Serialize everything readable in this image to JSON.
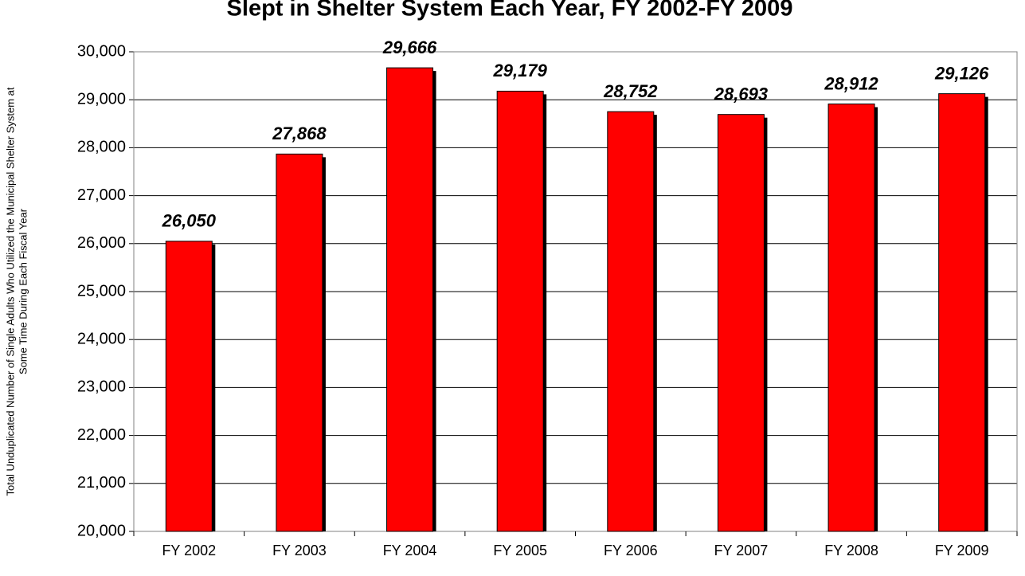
{
  "chart_data": {
    "type": "bar",
    "title": "Slept in Shelter System Each Year, FY 2002-FY 2009",
    "y_label": [
      "Total Unduplicated Number of Single Adults Who Utilized the Municipal Shelter System at",
      "Some Time During Each Fiscal Year"
    ],
    "categories": [
      "FY 2002",
      "FY 2003",
      "FY 2004",
      "FY 2005",
      "FY 2006",
      "FY 2007",
      "FY 2008",
      "FY 2009"
    ],
    "values": [
      26050,
      27868,
      29666,
      29179,
      28752,
      28693,
      28912,
      29126
    ],
    "value_labels": [
      "26,050",
      "27,868",
      "29,666",
      "29,179",
      "28,752",
      "28,693",
      "28,912",
      "29,126"
    ],
    "color": "#ff0000",
    "ylim": [
      20000,
      30000
    ],
    "yticks": [
      {
        "value": 20000,
        "label": "20,000"
      },
      {
        "value": 21000,
        "label": "21,000"
      },
      {
        "value": 22000,
        "label": "22,000"
      },
      {
        "value": 23000,
        "label": "23,000"
      },
      {
        "value": 24000,
        "label": "24,000"
      },
      {
        "value": 25000,
        "label": "25,000"
      },
      {
        "value": 26000,
        "label": "26,000"
      },
      {
        "value": 27000,
        "label": "27,000"
      },
      {
        "value": 28000,
        "label": "28,000"
      },
      {
        "value": 29000,
        "label": "29,000"
      },
      {
        "value": 30000,
        "label": "30,000"
      }
    ],
    "grid": true
  }
}
